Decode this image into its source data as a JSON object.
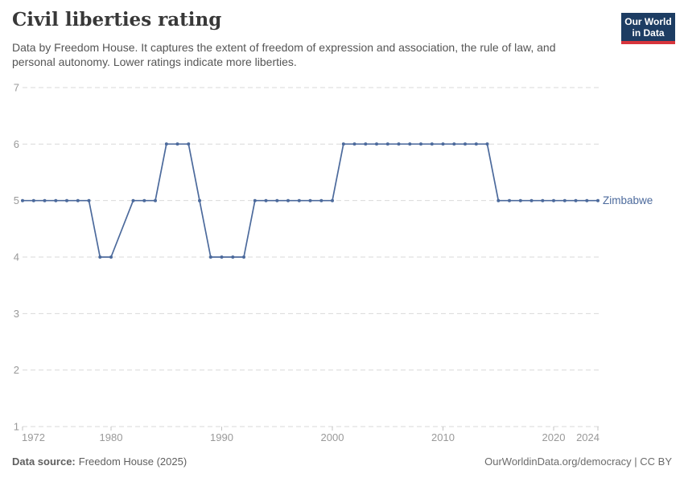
{
  "header": {
    "title": "Civil liberties rating",
    "subtitle": "Data by Freedom House. It captures the extent of freedom of expression and association, the rule of law, and\npersonal autonomy. Lower ratings indicate more liberties.",
    "logo": {
      "line1": "Our World",
      "line2": "in Data"
    }
  },
  "footer": {
    "source_label": "Data source:",
    "source_value": "Freedom House (2025)",
    "right_text": "OurWorldinData.org/democracy | CC BY"
  },
  "colors": {
    "series_line": "#4C6A9C",
    "gridline": "#d9d9d9",
    "axis_tick": "#c4c4c4",
    "axis_label": "#999999",
    "logo_navy": "#1d3d63",
    "logo_red": "#d7353c",
    "title_text": "#383838",
    "subtitle_text": "#555555"
  },
  "chart_data": {
    "type": "line",
    "title": "Civil liberties rating",
    "xlabel": "",
    "ylabel": "",
    "xlim": [
      1972,
      2024
    ],
    "ylim": [
      1,
      7
    ],
    "grid": "horizontal-dashed",
    "legend_position": "end-of-line-label",
    "x_ticks": [
      1972,
      1980,
      1990,
      2000,
      2010,
      2020,
      2024
    ],
    "y_ticks": [
      1,
      2,
      3,
      4,
      5,
      6,
      7
    ],
    "x": [
      1972,
      1973,
      1974,
      1975,
      1976,
      1977,
      1978,
      1979,
      1980,
      1982,
      1983,
      1984,
      1985,
      1986,
      1987,
      1988,
      1989,
      1990,
      1991,
      1992,
      1993,
      1994,
      1995,
      1996,
      1997,
      1998,
      1999,
      2000,
      2001,
      2002,
      2003,
      2004,
      2005,
      2006,
      2007,
      2008,
      2009,
      2010,
      2011,
      2012,
      2013,
      2014,
      2015,
      2016,
      2017,
      2018,
      2019,
      2020,
      2021,
      2022,
      2023,
      2024
    ],
    "series": [
      {
        "name": "Zimbabwe",
        "color": "#4C6A9C",
        "values": [
          5,
          5,
          5,
          5,
          5,
          5,
          5,
          4,
          4,
          5,
          5,
          5,
          6,
          6,
          6,
          5,
          4,
          4,
          4,
          4,
          5,
          5,
          5,
          5,
          5,
          5,
          5,
          5,
          6,
          6,
          6,
          6,
          6,
          6,
          6,
          6,
          6,
          6,
          6,
          6,
          6,
          6,
          5,
          5,
          5,
          5,
          5,
          5,
          5,
          5,
          5,
          5
        ]
      }
    ]
  }
}
